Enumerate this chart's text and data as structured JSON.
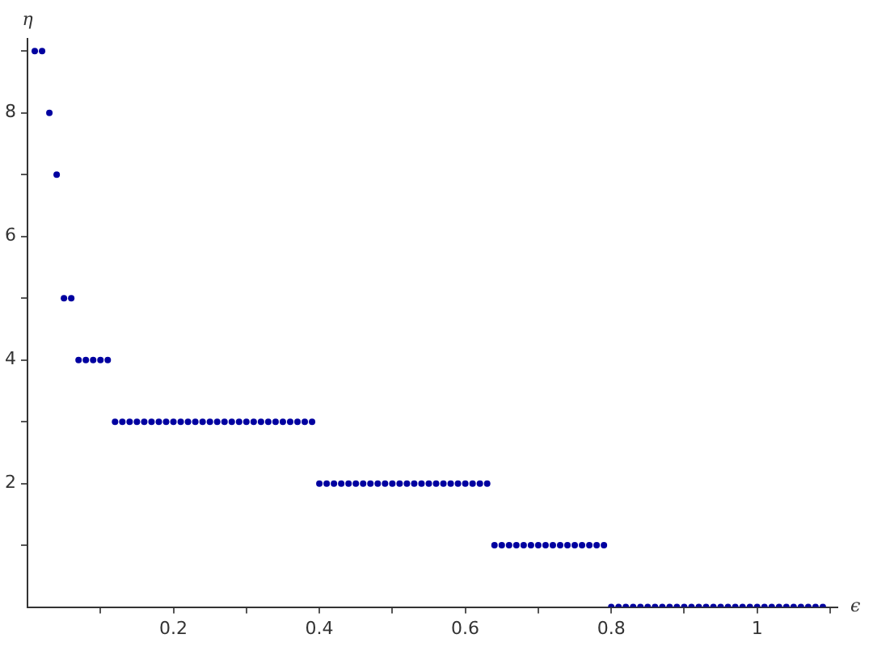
{
  "chart_data": {
    "type": "scatter",
    "xlabel": "ϵ",
    "ylabel": "η",
    "marker": "circle",
    "grid": false,
    "legend": false,
    "xlim": [
      0,
      1.11
    ],
    "ylim": [
      0,
      9.2
    ],
    "xticks": [
      {
        "value": 0.1,
        "label": null
      },
      0.2,
      {
        "value": 0.3,
        "label": null
      },
      0.4,
      {
        "value": 0.5,
        "label": null
      },
      0.6,
      {
        "value": 0.7,
        "label": null
      },
      0.8,
      {
        "value": 0.9,
        "label": null
      },
      1,
      {
        "value": 1.1,
        "label": null
      }
    ],
    "yticks": [
      {
        "value": 1,
        "label": null
      },
      2,
      {
        "value": 3,
        "label": null
      },
      4,
      {
        "value": 5,
        "label": null
      },
      6,
      {
        "value": 7,
        "label": null
      },
      8,
      {
        "value": 9,
        "label": null
      }
    ],
    "series": [
      {
        "color": "#0000a0",
        "x": [
          0.01,
          0.02,
          0.03,
          0.04,
          0.05,
          0.06,
          0.07,
          0.08,
          0.09,
          0.1,
          0.11,
          0.12,
          0.13,
          0.14,
          0.15,
          0.16,
          0.17,
          0.18,
          0.19,
          0.2,
          0.21,
          0.22,
          0.23,
          0.24,
          0.25,
          0.26,
          0.27,
          0.28,
          0.29,
          0.3,
          0.31,
          0.32,
          0.33,
          0.34,
          0.35,
          0.36,
          0.37,
          0.38,
          0.39,
          0.4,
          0.41,
          0.42,
          0.43,
          0.44,
          0.45,
          0.46,
          0.47,
          0.48,
          0.49,
          0.5,
          0.51,
          0.52,
          0.53,
          0.54,
          0.55,
          0.56,
          0.57,
          0.58,
          0.59,
          0.6,
          0.61,
          0.62,
          0.63,
          0.64,
          0.65,
          0.66,
          0.67,
          0.68,
          0.69,
          0.7,
          0.71,
          0.72,
          0.73,
          0.74,
          0.75,
          0.76,
          0.77,
          0.78,
          0.79,
          0.8,
          0.81,
          0.82,
          0.83,
          0.84,
          0.85,
          0.86,
          0.87,
          0.88,
          0.89,
          0.9,
          0.91,
          0.92,
          0.93,
          0.94,
          0.95,
          0.96,
          0.97,
          0.98,
          0.99,
          1.0,
          1.01,
          1.02,
          1.03,
          1.04,
          1.05,
          1.06,
          1.07,
          1.08,
          1.09
        ],
        "values": [
          9,
          9,
          8,
          7,
          5,
          5,
          4,
          4,
          4,
          4,
          4,
          3,
          3,
          3,
          3,
          3,
          3,
          3,
          3,
          3,
          3,
          3,
          3,
          3,
          3,
          3,
          3,
          3,
          3,
          3,
          3,
          3,
          3,
          3,
          3,
          3,
          3,
          3,
          3,
          2,
          2,
          2,
          2,
          2,
          2,
          2,
          2,
          2,
          2,
          2,
          2,
          2,
          2,
          2,
          2,
          2,
          2,
          2,
          2,
          2,
          2,
          2,
          2,
          1,
          1,
          1,
          1,
          1,
          1,
          1,
          1,
          1,
          1,
          1,
          1,
          1,
          1,
          1,
          1,
          0,
          0,
          0,
          0,
          0,
          0,
          0,
          0,
          0,
          0,
          0,
          0,
          0,
          0,
          0,
          0,
          0,
          0,
          0,
          0,
          0,
          0,
          0,
          0,
          0,
          0,
          0,
          0,
          0,
          0
        ]
      }
    ]
  }
}
